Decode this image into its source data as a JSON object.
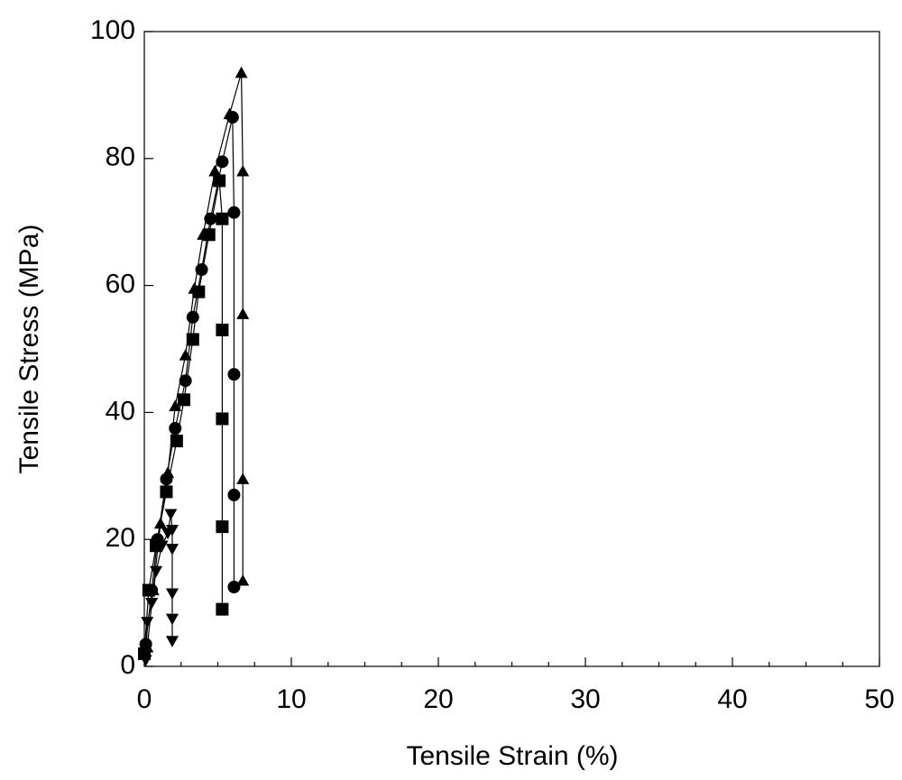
{
  "chart_data": {
    "type": "line",
    "x_label": "Tensile Strain (%)",
    "y_label": "Tensile Stress (MPa)",
    "xlim": [
      0,
      50
    ],
    "ylim": [
      0,
      100
    ],
    "xticks": [
      0,
      10,
      20,
      30,
      40,
      50
    ],
    "yticks": [
      0,
      20,
      40,
      60,
      80,
      100
    ],
    "xminorticks": [
      2.5,
      5,
      7.5,
      12.5,
      15,
      17.5,
      22.5,
      25,
      27.5,
      32.5,
      35,
      37.5,
      42.5,
      45,
      47.5
    ],
    "grid": false,
    "series": [
      {
        "marker": "triangle-down",
        "color": "#000000",
        "x": [
          0.1,
          0.2,
          0.5,
          0.8,
          1.2,
          1.6,
          1.8,
          1.9,
          1.9,
          1.9,
          1.9,
          1.9
        ],
        "values": [
          1,
          7,
          10,
          15,
          19,
          21,
          24,
          21.5,
          18.5,
          11.5,
          7.5,
          4
        ]
      },
      {
        "marker": "square",
        "color": "#000000",
        "x": [
          0,
          0.3,
          0.8,
          1.5,
          2.2,
          2.7,
          3.3,
          3.7,
          4.4,
          5.1,
          5.3,
          5.3,
          5.3,
          5.3,
          5.3
        ],
        "values": [
          2,
          12,
          19,
          27.5,
          35.5,
          42,
          51.5,
          59,
          68,
          76.5,
          70.5,
          53,
          39,
          22,
          9
        ]
      },
      {
        "marker": "circle",
        "color": "#000000",
        "x": [
          0.1,
          0.5,
          0.9,
          1.5,
          2.1,
          2.8,
          3.3,
          3.9,
          4.5,
          5.3,
          6.0,
          6.1,
          6.1,
          6.1,
          6.1
        ],
        "values": [
          3.5,
          12,
          20,
          29.5,
          37.5,
          45,
          55,
          62.5,
          70.5,
          79.5,
          86.5,
          71.5,
          46,
          27,
          12.5
        ]
      },
      {
        "marker": "triangle-up",
        "color": "#000000",
        "x": [
          0.2,
          0.6,
          1.1,
          1.6,
          2.1,
          2.8,
          3.4,
          4.0,
          4.8,
          5.8,
          6.6,
          6.7,
          6.7,
          6.7,
          6.7
        ],
        "values": [
          3,
          12,
          22.5,
          30.5,
          41,
          49,
          59.5,
          68,
          78,
          87,
          93.5,
          78,
          55.5,
          29.5,
          13.5
        ]
      }
    ]
  }
}
